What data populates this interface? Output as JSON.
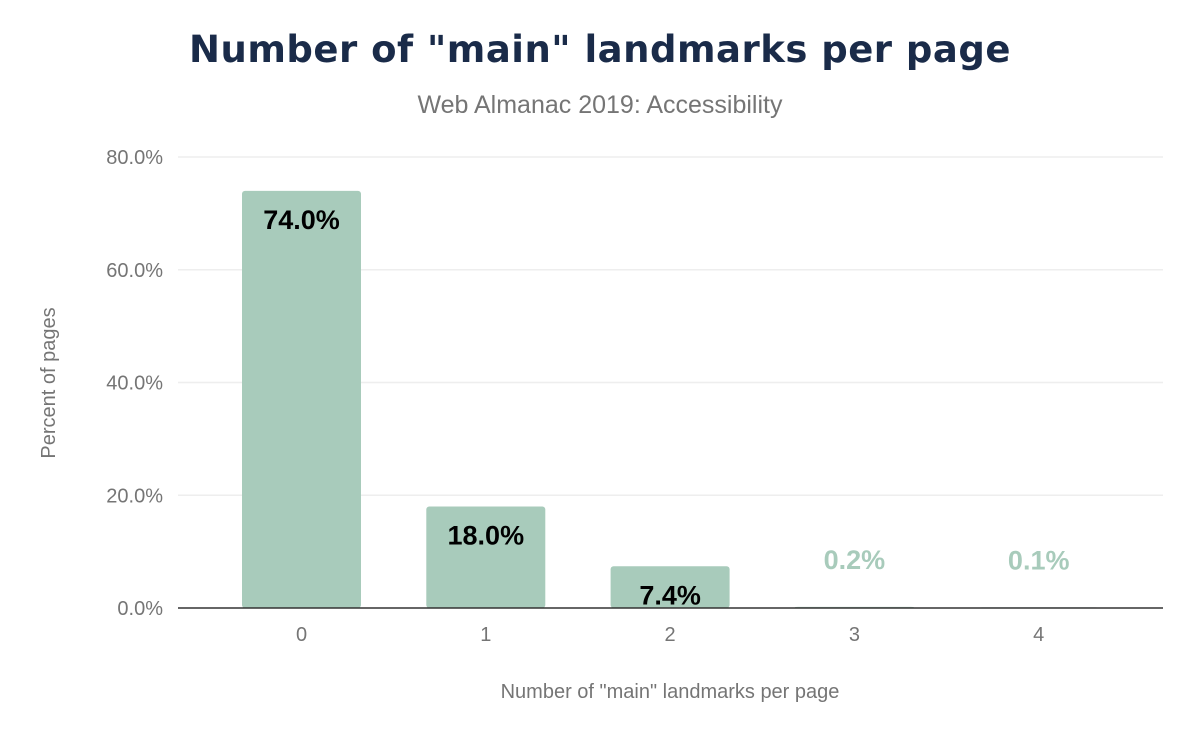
{
  "chart_data": {
    "type": "bar",
    "title": "Number of \"main\" landmarks per page",
    "subtitle": "Web Almanac 2019: Accessibility",
    "xlabel": "Number of \"main\" landmarks per page",
    "ylabel": "Percent of pages",
    "categories": [
      "0",
      "1",
      "2",
      "3",
      "4"
    ],
    "values": [
      74.0,
      18.0,
      7.4,
      0.2,
      0.1
    ],
    "data_labels": [
      "74.0%",
      "18.0%",
      "7.4%",
      "0.2%",
      "0.1%"
    ],
    "ylim": [
      0,
      80
    ],
    "yticks": [
      0,
      20,
      40,
      60,
      80
    ],
    "ytick_labels": [
      "0.0%",
      "20.0%",
      "40.0%",
      "60.0%",
      "80.0%"
    ],
    "grid": true,
    "colors": {
      "bar": "#a8cbbb",
      "title": "#1a2b49",
      "label_inside": "#000000",
      "axis": "#333333",
      "grid": "#eeeeee"
    }
  }
}
